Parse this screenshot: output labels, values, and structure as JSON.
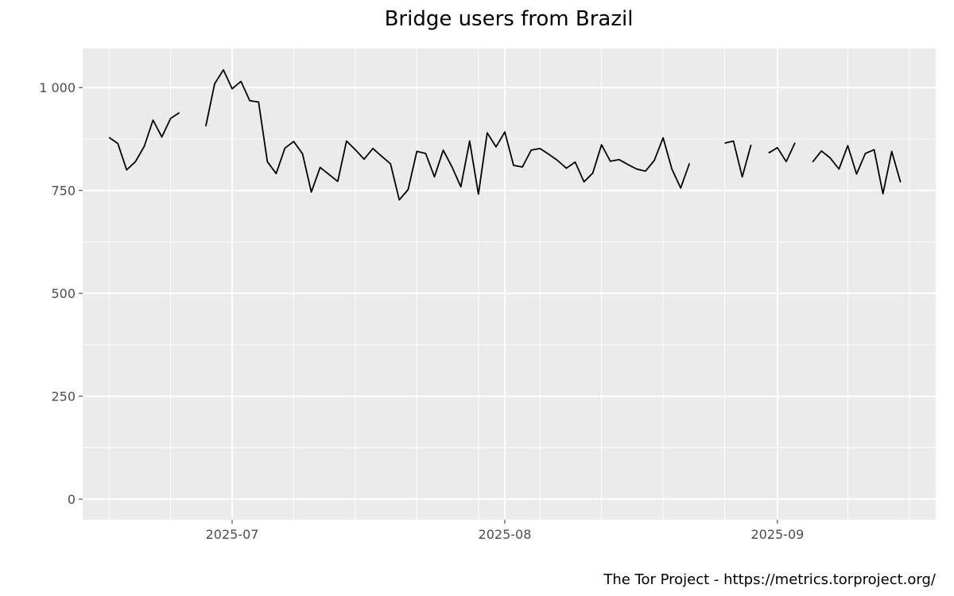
{
  "chart_data": {
    "type": "line",
    "title": "Bridge users from Brazil",
    "caption": "The Tor Project - https://metrics.torproject.org/",
    "xlabel": "",
    "ylabel": "",
    "x_axis": {
      "type": "date",
      "range": [
        "2025-06-14",
        "2025-09-19"
      ],
      "ticks": [
        "2025-07-01",
        "2025-08-01",
        "2025-09-01"
      ],
      "tick_labels": [
        "2025-07",
        "2025-08",
        "2025-09"
      ]
    },
    "y_axis": {
      "range": [
        -50,
        1095
      ],
      "ticks": [
        0,
        250,
        500,
        750,
        1000
      ],
      "tick_labels": [
        "0",
        "250",
        "500",
        "750",
        "1 000"
      ]
    },
    "grid": true,
    "background": "#ebebeb",
    "line_color": "#000000",
    "series": [
      {
        "points": [
          [
            "2025-06-17",
            879
          ],
          [
            "2025-06-18",
            864
          ],
          [
            "2025-06-19",
            800
          ],
          [
            "2025-06-20",
            820
          ],
          [
            "2025-06-21",
            857
          ],
          [
            "2025-06-22",
            921
          ],
          [
            "2025-06-23",
            880
          ],
          [
            "2025-06-24",
            925
          ],
          [
            "2025-06-25",
            939
          ],
          [
            "2025-06-26",
            null
          ],
          [
            "2025-06-27",
            null
          ],
          [
            "2025-06-28",
            906
          ],
          [
            "2025-06-29",
            1009
          ],
          [
            "2025-06-30",
            1043
          ],
          [
            "2025-07-01",
            997
          ],
          [
            "2025-07-02",
            1015
          ],
          [
            "2025-07-03",
            968
          ],
          [
            "2025-07-04",
            965
          ],
          [
            "2025-07-05",
            820
          ],
          [
            "2025-07-06",
            791
          ],
          [
            "2025-07-07",
            853
          ],
          [
            "2025-07-08",
            869
          ],
          [
            "2025-07-09",
            839
          ],
          [
            "2025-07-10",
            746
          ],
          [
            "2025-07-11",
            806
          ],
          [
            "2025-07-12",
            789
          ],
          [
            "2025-07-13",
            772
          ],
          [
            "2025-07-14",
            870
          ],
          [
            "2025-07-15",
            849
          ],
          [
            "2025-07-16",
            826
          ],
          [
            "2025-07-17",
            852
          ],
          [
            "2025-07-18",
            833
          ],
          [
            "2025-07-19",
            815
          ],
          [
            "2025-07-20",
            727
          ],
          [
            "2025-07-21",
            752
          ],
          [
            "2025-07-22",
            845
          ],
          [
            "2025-07-23",
            840
          ],
          [
            "2025-07-24",
            783
          ],
          [
            "2025-07-25",
            848
          ],
          [
            "2025-07-26",
            807
          ],
          [
            "2025-07-27",
            759
          ],
          [
            "2025-07-28",
            870
          ],
          [
            "2025-07-29",
            741
          ],
          [
            "2025-07-30",
            890
          ],
          [
            "2025-07-31",
            856
          ],
          [
            "2025-08-01",
            892
          ],
          [
            "2025-08-02",
            811
          ],
          [
            "2025-08-03",
            807
          ],
          [
            "2025-08-04",
            848
          ],
          [
            "2025-08-05",
            852
          ],
          [
            "2025-08-06",
            838
          ],
          [
            "2025-08-07",
            823
          ],
          [
            "2025-08-08",
            804
          ],
          [
            "2025-08-09",
            819
          ],
          [
            "2025-08-10",
            771
          ],
          [
            "2025-08-11",
            792
          ],
          [
            "2025-08-12",
            861
          ],
          [
            "2025-08-13",
            821
          ],
          [
            "2025-08-14",
            825
          ],
          [
            "2025-08-15",
            813
          ],
          [
            "2025-08-16",
            802
          ],
          [
            "2025-08-17",
            797
          ],
          [
            "2025-08-18",
            823
          ],
          [
            "2025-08-19",
            878
          ],
          [
            "2025-08-20",
            802
          ],
          [
            "2025-08-21",
            756
          ],
          [
            "2025-08-22",
            816
          ],
          [
            "2025-08-23",
            null
          ],
          [
            "2025-08-24",
            null
          ],
          [
            "2025-08-25",
            null
          ],
          [
            "2025-08-26",
            865
          ],
          [
            "2025-08-27",
            870
          ],
          [
            "2025-08-28",
            783
          ],
          [
            "2025-08-29",
            861
          ],
          [
            "2025-08-30",
            null
          ],
          [
            "2025-08-31",
            841
          ],
          [
            "2025-09-01",
            854
          ],
          [
            "2025-09-02",
            820
          ],
          [
            "2025-09-03",
            866
          ],
          [
            "2025-09-04",
            null
          ],
          [
            "2025-09-05",
            819
          ],
          [
            "2025-09-06",
            846
          ],
          [
            "2025-09-07",
            829
          ],
          [
            "2025-09-08",
            802
          ],
          [
            "2025-09-09",
            859
          ],
          [
            "2025-09-10",
            790
          ],
          [
            "2025-09-11",
            840
          ],
          [
            "2025-09-12",
            849
          ],
          [
            "2025-09-13",
            742
          ],
          [
            "2025-09-14",
            845
          ],
          [
            "2025-09-15",
            770
          ]
        ]
      }
    ]
  }
}
